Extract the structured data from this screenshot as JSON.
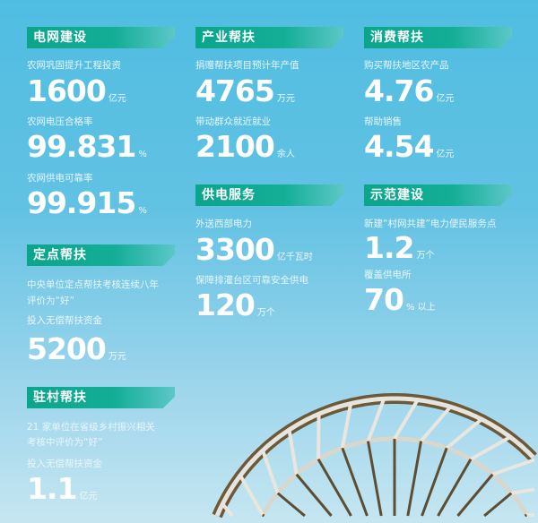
{
  "sections": {
    "grid": {
      "title": "电网建设",
      "items": [
        {
          "label": "农网巩固提升工程投资",
          "value": "1600",
          "unit": "亿元"
        },
        {
          "label": "农网电压合格率",
          "value": "99.831",
          "unit": "%"
        },
        {
          "label": "农网供电可靠率",
          "value": "99.915",
          "unit": "%"
        }
      ]
    },
    "industry": {
      "title": "产业帮扶",
      "items": [
        {
          "label": "捐赠帮扶项目预计年产值",
          "value": "4765",
          "unit": "万元"
        },
        {
          "label": "带动群众就近就业",
          "value": "2100",
          "unit": "余人"
        }
      ]
    },
    "consumption": {
      "title": "消费帮扶",
      "items": [
        {
          "label": "购买帮扶地区农产品",
          "value": "4.76",
          "unit": "亿元"
        },
        {
          "label": "帮助销售",
          "value": "4.54",
          "unit": "亿元"
        }
      ]
    },
    "supply": {
      "title": "供电服务",
      "items": [
        {
          "label": "外送西部电力",
          "value": "3300",
          "unit": "亿千瓦时"
        },
        {
          "label": "保障排灌台区可靠安全供电",
          "value": "120",
          "unit": "万个"
        }
      ]
    },
    "demo": {
      "title": "示范建设",
      "items": [
        {
          "label": "新建“村网共建”电力便民服务点",
          "value": "1.2",
          "unit": "万个"
        },
        {
          "label": "覆盖供电所",
          "value": "70",
          "unit": "% 以上"
        }
      ]
    },
    "fixed": {
      "title": "定点帮扶",
      "desc1": "中央单位定点帮扶考核连续八年",
      "desc2": "评价为“好”",
      "label": "投入无偿帮扶资金",
      "value": "5200",
      "unit": "万元"
    },
    "village": {
      "title": "驻村帮扶",
      "desc1": "21 家单位在省级乡村振兴相关",
      "desc2": "考核中评价为“好”",
      "label": "投入无偿帮扶资金",
      "value": "1.1",
      "unit": "亿元"
    }
  },
  "colors": {
    "header": "#0aa58b",
    "sky_top": "#4fbde2",
    "sky_bottom": "#c5e6f1"
  },
  "background_image": "waterwheel"
}
